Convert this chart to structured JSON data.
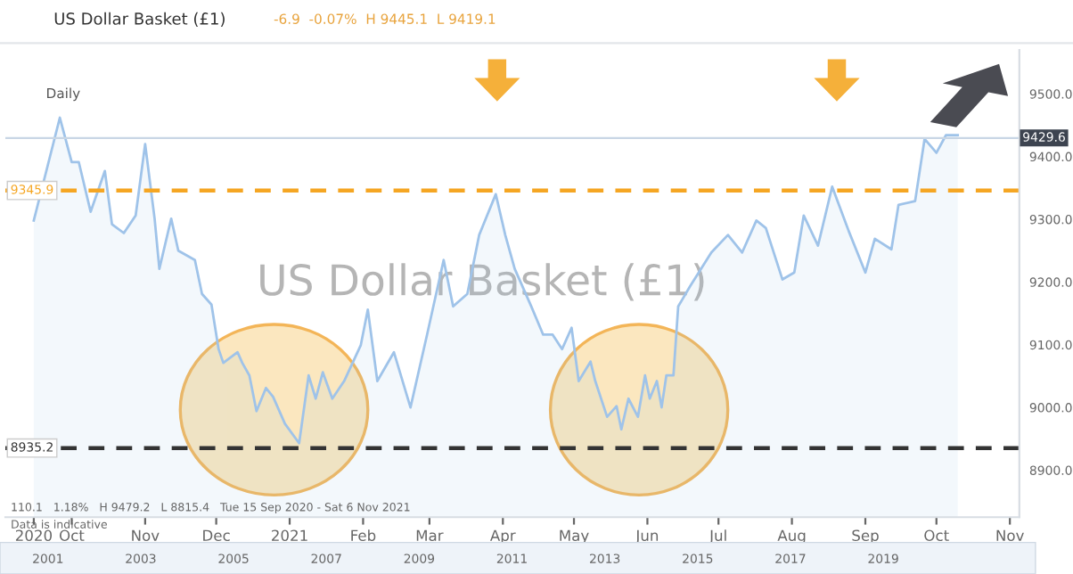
{
  "chart_data": {
    "type": "area",
    "title": "US Dollar Basket (£1)",
    "subtitle": "-6.9  -0.07%  H 9445.1  L 9419.1",
    "annotations": [
      "Daily",
      "US Dollar Basket (£1)",
      "110.1   1.18%   H 9479.2   L 8815.4   Tue 15 Sep 2020 - Sat 6 Nov 2021",
      "Data is indicative",
      "2001",
      "2003",
      "2005",
      "2007",
      "2009",
      "2011",
      "2013",
      "2015",
      "2017",
      "2019"
    ],
    "x": [
      "2020-09-15",
      "2020-09-26",
      "2020-10-01",
      "2020-10-04",
      "2020-10-09",
      "2020-10-15",
      "2020-10-18",
      "2020-10-23",
      "2020-10-28",
      "2020-11-01",
      "2020-11-05",
      "2020-11-07",
      "2020-11-12",
      "2020-11-15",
      "2020-11-22",
      "2020-11-25",
      "2020-11-29",
      "2020-12-02",
      "2020-12-04",
      "2020-12-10",
      "2020-12-12",
      "2020-12-15",
      "2020-12-18",
      "2020-12-22",
      "2020-12-25",
      "2020-12-30",
      "2021-01-05",
      "2021-01-09",
      "2021-01-12",
      "2021-01-15",
      "2021-01-19",
      "2021-01-24",
      "2021-01-31",
      "2021-02-03",
      "2021-02-07",
      "2021-02-14",
      "2021-02-21",
      "2021-02-28",
      "2021-03-07",
      "2021-03-11",
      "2021-03-17",
      "2021-03-22",
      "2021-03-29",
      "2021-04-02",
      "2021-04-06",
      "2021-04-13",
      "2021-04-18",
      "2021-04-22",
      "2021-04-26",
      "2021-04-30",
      "2021-05-03",
      "2021-05-08",
      "2021-05-10",
      "2021-05-15",
      "2021-05-19",
      "2021-05-21",
      "2021-05-24",
      "2021-05-28",
      "2021-05-31",
      "2021-06-02",
      "2021-06-05",
      "2021-06-07",
      "2021-06-09",
      "2021-06-12",
      "2021-06-14",
      "2021-06-19",
      "2021-06-28",
      "2021-07-05",
      "2021-07-11",
      "2021-07-17",
      "2021-07-21",
      "2021-07-28",
      "2021-08-02",
      "2021-08-06",
      "2021-08-12",
      "2021-08-18",
      "2021-08-25",
      "2021-09-01",
      "2021-09-05",
      "2021-09-12",
      "2021-09-15",
      "2021-09-22",
      "2021-09-26",
      "2021-10-01",
      "2021-10-05",
      "2021-10-10"
    ],
    "series": [
      {
        "color": "#9fc3e9",
        "values": [
          9298,
          9462,
          9391,
          9391,
          9312,
          9377,
          9292,
          9278,
          9306,
          9420,
          9301,
          9221,
          9301,
          9250,
          9235,
          9181,
          9164,
          9093,
          9071,
          9088,
          9071,
          9051,
          8994,
          9031,
          9017,
          8974,
          8943,
          9051,
          9014,
          9056,
          9014,
          9042,
          9099,
          9156,
          9042,
          9088,
          9000,
          9116,
          9235,
          9161,
          9181,
          9275,
          9340,
          9275,
          9221,
          9161,
          9116,
          9116,
          9093,
          9127,
          9042,
          9073,
          9042,
          8985,
          9002,
          8965,
          9014,
          8985,
          9051,
          9014,
          9042,
          9000,
          9051,
          9051,
          9161,
          9193,
          9247,
          9275,
          9247,
          9298,
          9286,
          9204,
          9215,
          9306,
          9258,
          9352,
          9281,
          9215,
          9269,
          9252,
          9323,
          9329,
          9428,
          9406,
          9434,
          9434
        ]
      }
    ],
    "xlim": [
      "2020-09-03",
      "2021-11-05"
    ],
    "xticks": [
      {
        "value": "2020-09-15",
        "label": "2020"
      },
      {
        "value": "2020-10-01",
        "label": "Oct"
      },
      {
        "value": "2020-11-01",
        "label": "Nov"
      },
      {
        "value": "2020-12-01",
        "label": "Dec"
      },
      {
        "value": "2021-01-01",
        "label": "2021"
      },
      {
        "value": "2021-02-01",
        "label": "Feb"
      },
      {
        "value": "2021-03-01",
        "label": "Mar"
      },
      {
        "value": "2021-04-01",
        "label": "Apr"
      },
      {
        "value": "2021-05-01",
        "label": "May"
      },
      {
        "value": "2021-06-01",
        "label": "Jun"
      },
      {
        "value": "2021-07-01",
        "label": "Jul"
      },
      {
        "value": "2021-08-01",
        "label": "Aug"
      },
      {
        "value": "2021-09-01",
        "label": "Sep"
      },
      {
        "value": "2021-10-01",
        "label": "Oct"
      },
      {
        "value": "2021-11-01",
        "label": "Nov"
      }
    ],
    "ylim": [
      8825,
      9570
    ],
    "yticks": [
      {
        "value": 8900,
        "label": "8900.0"
      },
      {
        "value": 9000,
        "label": "9000.0"
      },
      {
        "value": 9100,
        "label": "9100.0"
      },
      {
        "value": 9200,
        "label": "9200.0"
      },
      {
        "value": 9300,
        "label": "9300.0"
      },
      {
        "value": 9400,
        "label": "9400.0"
      },
      {
        "value": 9500,
        "label": "9500.0"
      }
    ],
    "ref_lines": [
      {
        "axis": "y",
        "value": 9429.6,
        "label": "9429.6",
        "color": "#c8d6e5",
        "line_style": "solid"
      },
      {
        "axis": "y",
        "value": 9345.9,
        "label": "9345.9",
        "color": "#f5a623",
        "line_style": "dashed"
      },
      {
        "axis": "y",
        "value": 8935.2,
        "label": "8935.2",
        "color": "#333333",
        "line_style": "dashed"
      }
    ],
    "grid": false,
    "legend": false
  }
}
